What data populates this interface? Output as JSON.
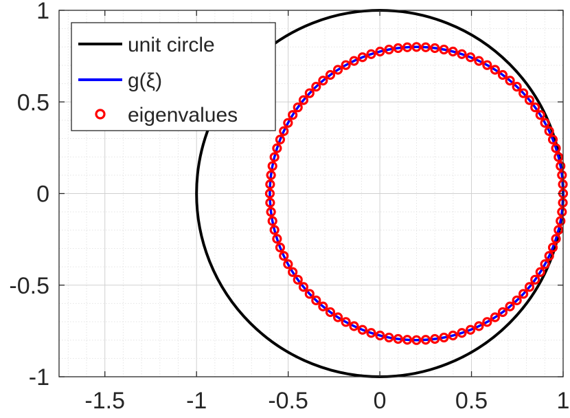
{
  "chart_data": {
    "type": "scatter",
    "xlim": [
      -1.75,
      1.0
    ],
    "ylim": [
      -1.0,
      1.0
    ],
    "xticks": [
      -1.5,
      -1,
      -0.5,
      0,
      0.5,
      1
    ],
    "xtick_labels": [
      "-1.5",
      "-1",
      "-0.5",
      "0",
      "0.5",
      "1"
    ],
    "yticks": [
      -1,
      -0.5,
      0,
      0.5,
      1
    ],
    "ytick_labels": [
      "-1",
      "-0.5",
      "0",
      "0.5",
      "1"
    ],
    "grid": true,
    "minor_grid": true,
    "legend_position": "top-left",
    "aspect": "equal",
    "series": [
      {
        "name": "unit circle",
        "kind": "line",
        "color": "#000000",
        "shape": "circle",
        "center": [
          0,
          0
        ],
        "radius": 1.0
      },
      {
        "name": "g(ξ)",
        "kind": "line",
        "color": "#0000ff",
        "shape": "circle",
        "center": [
          0.2,
          0
        ],
        "radius": 0.8
      },
      {
        "name": "eigenvalues",
        "kind": "markers",
        "color": "#ff0000",
        "marker": "open-circle",
        "center": [
          0.2,
          0
        ],
        "radius": 0.8,
        "count": 100
      }
    ]
  },
  "legend": {
    "items": [
      "unit circle",
      "g(ξ)",
      "eigenvalues"
    ]
  }
}
